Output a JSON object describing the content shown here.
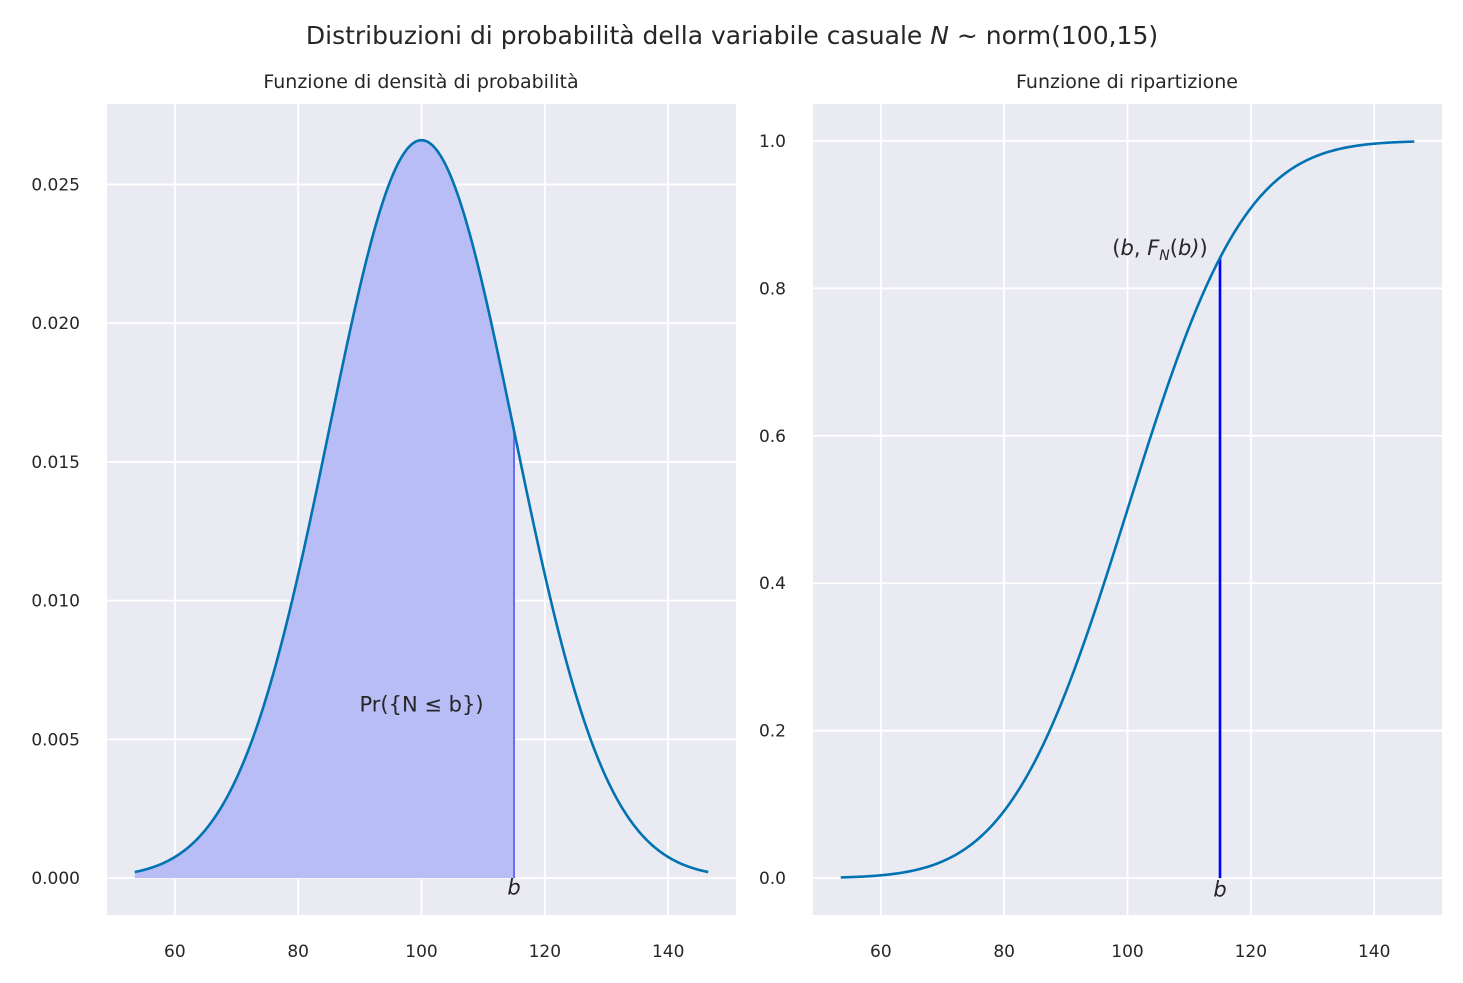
{
  "suptitle": {
    "prefix": "Distribuzioni di probabilità della variabile casuale ",
    "var": "N",
    "suffix": " ~ norm(100,15)"
  },
  "colors": {
    "background": "#EAEAF2",
    "grid": "#FFFFFF",
    "curve": "#0173B2",
    "fill": "#B8BDF5",
    "bline_pdf": "#6E6EF5",
    "bline_cdf": "#0000FF"
  },
  "distribution": {
    "mean": 100,
    "sd": 15,
    "x_min": 53.5,
    "x_max": 146.5,
    "b": 115
  },
  "chart_data": [
    {
      "type": "area",
      "title": "Funzione di densità di probabilità",
      "xlim": [
        49,
        151
      ],
      "ylim": [
        -0.00133,
        0.0279
      ],
      "xticks": [
        60,
        80,
        100,
        120,
        140
      ],
      "xtick_labels": [
        "60",
        "80",
        "100",
        "120",
        "140"
      ],
      "yticks": [
        0,
        0.005,
        0.01,
        0.015,
        0.02,
        0.025
      ],
      "ytick_labels": [
        "0.000",
        "0.005",
        "0.010",
        "0.015",
        "0.020",
        "0.025"
      ],
      "shaded_region": [
        53.5,
        115
      ],
      "annotation": {
        "text": "Pr({N ≤ b})",
        "x": 100,
        "y": 0.0063
      },
      "b_label": {
        "text": "b",
        "x": 115,
        "y": -0.0003
      }
    },
    {
      "type": "line",
      "title": "Funzione di ripartizione",
      "xlim": [
        49,
        151
      ],
      "ylim": [
        -0.05,
        1.05
      ],
      "xticks": [
        60,
        80,
        100,
        120,
        140
      ],
      "xtick_labels": [
        "60",
        "80",
        "100",
        "120",
        "140"
      ],
      "yticks": [
        0,
        0.2,
        0.4,
        0.6,
        0.8,
        1.0
      ],
      "ytick_labels": [
        "0.0",
        "0.2",
        "0.4",
        "0.6",
        "0.8",
        "1.0"
      ],
      "annotation": {
        "text_b": "b",
        "text_F": "F",
        "text_N": "N",
        "text_close": "b)",
        "x": 115,
        "y": 0.856
      },
      "b_label": {
        "text": "b",
        "x": 115,
        "y": -0.014
      }
    }
  ]
}
